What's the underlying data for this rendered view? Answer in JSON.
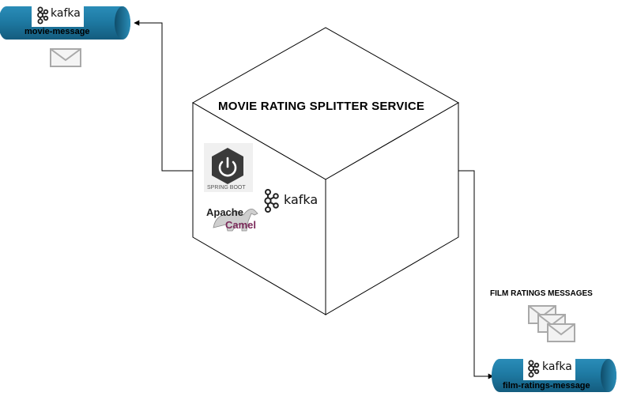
{
  "colors": {
    "cylinder_body": "#1f7aa1",
    "cylinder_dark": "#145c7e",
    "cylinder_light": "#c7e3ee",
    "envelope": "#a9a9a9",
    "stroke": "#000000",
    "camel_purple": "#7b2a5a"
  },
  "topics": {
    "movie": {
      "label": "movie-message",
      "logo_text": "kafka",
      "icon": "kafka-logo-icon"
    },
    "ratings": {
      "label": "film-ratings-message",
      "logo_text": "kafka",
      "icon": "kafka-logo-icon"
    }
  },
  "service": {
    "title": "MOVIE RATING SPLITTER SERVICE",
    "spring_boot_label": "SPRING BOOT",
    "kafka_label": "kafka",
    "camel_line1": "Apache",
    "camel_line2": "Camel"
  },
  "messages": {
    "title": "FILM RATINGS MESSAGES",
    "icon": "envelope-stack-icon"
  },
  "single_message": {
    "icon": "envelope-icon"
  }
}
